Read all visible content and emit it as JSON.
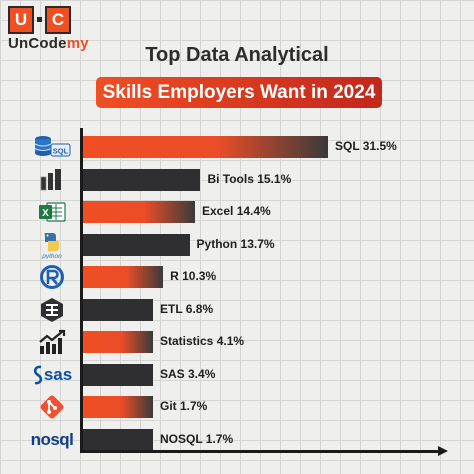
{
  "logo": {
    "mark_left": "U",
    "mark_right": "C",
    "name_part1": "UnCode",
    "name_part2": "my"
  },
  "title_line1": "Top Data Analytical",
  "title_line2": "Skills Employers Want in 2024",
  "colors": {
    "accent": "#f04e23",
    "dark_bar": "#2f2f31",
    "background": "#efefed"
  },
  "chart_data": {
    "type": "bar",
    "orientation": "horizontal",
    "categories": [
      "SQL",
      "Bi Tools",
      "Excel",
      "Python",
      "R",
      "ETL",
      "Statistics",
      "SAS",
      "Git",
      "NOSQL"
    ],
    "values": [
      31.5,
      15.1,
      14.4,
      13.7,
      10.3,
      6.8,
      4.1,
      3.4,
      1.7,
      1.7
    ],
    "unit": "%",
    "bar_colors": [
      "accent",
      "dark",
      "accent",
      "dark",
      "accent",
      "dark",
      "accent",
      "dark",
      "accent",
      "dark"
    ],
    "data_labels": [
      "SQL 31.5%",
      "Bi Tools 15.1%",
      "Excel 14.4%",
      "Python 13.7%",
      "R 10.3%",
      "ETL 6.8%",
      "Statistics 4.1%",
      "SAS 3.4%",
      "Git 1.7%",
      "NOSQL 1.7%"
    ],
    "icons": [
      "sql-database-icon",
      "power-bi-icon",
      "excel-icon",
      "python-icon",
      "r-icon",
      "etl-icon",
      "statistics-chart-icon",
      "sas-icon",
      "git-icon",
      "nosql-icon"
    ],
    "icon_text": [
      "SQL",
      "",
      "X",
      "python",
      "R",
      "",
      "",
      "sas",
      "",
      "nosql"
    ],
    "title": "Top Data Analytical Skills Employers Want in 2024",
    "xlabel": "",
    "ylabel": "",
    "grid": true,
    "legend": "none"
  }
}
